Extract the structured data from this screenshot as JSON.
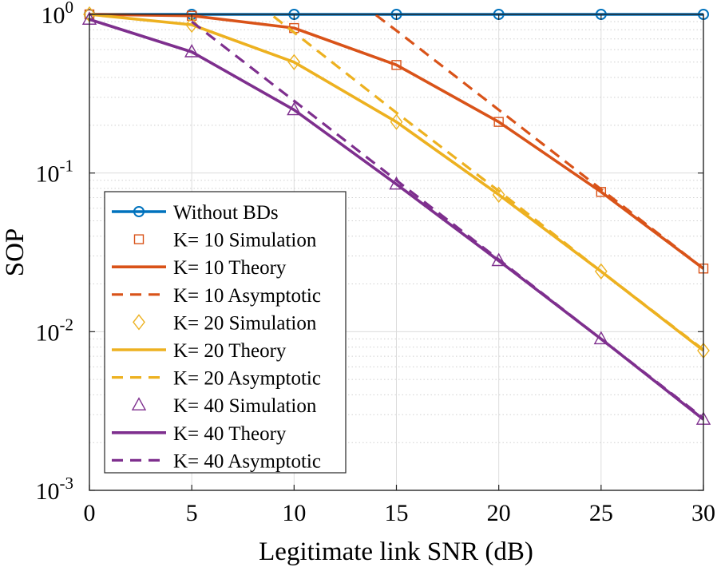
{
  "chart_data": {
    "type": "line",
    "title": "",
    "xlabel": "Legitimate link SNR (dB)",
    "ylabel": "SOP",
    "xlim": [
      0,
      30
    ],
    "ylim": [
      0.001,
      1
    ],
    "yscale": "log",
    "grid": true,
    "legend_position": "lower-left",
    "x_ticks": [
      0,
      5,
      10,
      15,
      20,
      25,
      30
    ],
    "x_tick_labels": [
      "0",
      "5",
      "10",
      "15",
      "20",
      "25",
      "30"
    ],
    "y_ticks": [
      1,
      0.1,
      0.01,
      0.001
    ],
    "y_tick_labels": [
      {
        "base": "10",
        "exp": "0"
      },
      {
        "base": "10",
        "exp": "-1"
      },
      {
        "base": "10",
        "exp": "-2"
      },
      {
        "base": "10",
        "exp": "-3"
      }
    ],
    "series": [
      {
        "name": "Without BDs",
        "color": "#0072BD",
        "style": "solid",
        "marker": "circle",
        "x": [
          0,
          5,
          10,
          15,
          20,
          25,
          30
        ],
        "y": [
          1,
          1,
          1,
          1,
          1,
          1,
          1
        ]
      },
      {
        "name": "K= 10 Simulation",
        "color": "#D95319",
        "style": "none",
        "marker": "square",
        "x": [
          0,
          5,
          10,
          15,
          20,
          25,
          30
        ],
        "y": [
          1,
          0.98,
          0.82,
          0.48,
          0.21,
          0.076,
          0.025
        ]
      },
      {
        "name": "K= 10 Theory",
        "color": "#D95319",
        "style": "solid",
        "marker": "none",
        "x": [
          0,
          5,
          10,
          15,
          20,
          25,
          30
        ],
        "y": [
          1,
          0.98,
          0.82,
          0.48,
          0.21,
          0.076,
          0.025
        ]
      },
      {
        "name": "K= 10 Asymptotic",
        "color": "#D95319",
        "style": "dashed",
        "marker": "none",
        "x": [
          14,
          15,
          20,
          25,
          30
        ],
        "y": [
          0.99,
          0.79,
          0.25,
          0.079,
          0.025
        ]
      },
      {
        "name": "K= 20 Simulation",
        "color": "#EDB120",
        "style": "none",
        "marker": "diamond",
        "x": [
          0,
          5,
          10,
          15,
          20,
          25,
          30
        ],
        "y": [
          1,
          0.86,
          0.5,
          0.21,
          0.073,
          0.024,
          0.0076
        ]
      },
      {
        "name": "K= 20 Theory",
        "color": "#EDB120",
        "style": "solid",
        "marker": "none",
        "x": [
          0,
          5,
          10,
          15,
          20,
          25,
          30
        ],
        "y": [
          1,
          0.86,
          0.5,
          0.21,
          0.073,
          0.024,
          0.0076
        ]
      },
      {
        "name": "K= 20 Asymptotic",
        "color": "#EDB120",
        "style": "dashed",
        "marker": "none",
        "x": [
          9,
          10,
          15,
          20,
          25,
          30
        ],
        "y": [
          0.97,
          0.77,
          0.24,
          0.077,
          0.024,
          0.0077
        ]
      },
      {
        "name": "K= 40 Simulation",
        "color": "#7E2F8E",
        "style": "none",
        "marker": "triangle",
        "x": [
          0,
          5,
          10,
          15,
          20,
          25,
          30
        ],
        "y": [
          0.93,
          0.58,
          0.25,
          0.085,
          0.028,
          0.009,
          0.0028
        ]
      },
      {
        "name": "K= 40 Theory",
        "color": "#7E2F8E",
        "style": "solid",
        "marker": "none",
        "x": [
          0,
          5,
          10,
          15,
          20,
          25,
          30
        ],
        "y": [
          0.93,
          0.58,
          0.25,
          0.085,
          0.028,
          0.009,
          0.0028
        ]
      },
      {
        "name": "K= 40 Asymptotic",
        "color": "#7E2F8E",
        "style": "dashed",
        "marker": "none",
        "x": [
          5,
          10,
          15,
          20,
          25,
          30
        ],
        "y": [
          0.9,
          0.285,
          0.09,
          0.0285,
          0.009,
          0.00285
        ]
      }
    ]
  }
}
